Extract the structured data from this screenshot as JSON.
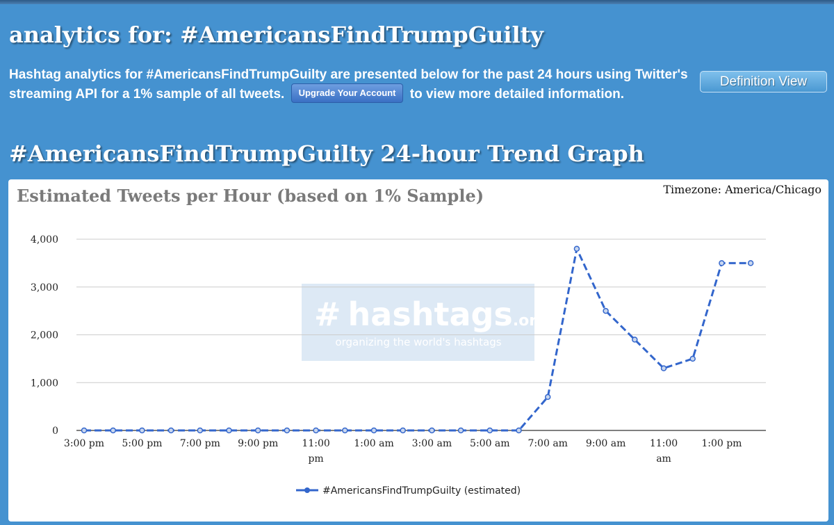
{
  "page": {
    "heading": "analytics for: #AmericansFindTrumpGuilty",
    "intro_before": "Hashtag analytics for #AmericansFindTrumpGuilty are presented below for the past 24 hours using Twitter's streaming API for a 1% sample of all tweets.",
    "upgrade_button": "Upgrade Your Account",
    "intro_after": "to view more detailed information.",
    "definition_button": "Definition View",
    "section_heading": "#AmericansFindTrumpGuilty 24-hour Trend Graph"
  },
  "watermark": {
    "hash": "#",
    "name": "hashtags",
    "tld": ".org",
    "tagline": "organizing the world's hashtags"
  },
  "chart_data": {
    "type": "line",
    "title": "Estimated Tweets per Hour (based on 1% Sample)",
    "timezone_label": "Timezone: America/Chicago",
    "x_tick_labels": [
      "3:00 pm",
      "5:00 pm",
      "7:00 pm",
      "9:00 pm",
      "11:00 pm",
      "1:00 am",
      "3:00 am",
      "5:00 am",
      "7:00 am",
      "9:00 am",
      "11:00 am",
      "1:00 pm"
    ],
    "x": [
      "3:00 pm",
      "4:00 pm",
      "5:00 pm",
      "6:00 pm",
      "7:00 pm",
      "8:00 pm",
      "9:00 pm",
      "10:00 pm",
      "11:00 pm",
      "12:00 am",
      "1:00 am",
      "2:00 am",
      "3:00 am",
      "4:00 am",
      "5:00 am",
      "6:00 am",
      "7:00 am",
      "8:00 am",
      "9:00 am",
      "10:00 am",
      "11:00 am",
      "12:00 pm",
      "1:00 pm",
      "2:00 pm"
    ],
    "y_ticks": [
      "0",
      "1,000",
      "2,000",
      "3,000",
      "4,000"
    ],
    "ylim": [
      0,
      4000
    ],
    "grid": true,
    "legend_position": "bottom",
    "series": [
      {
        "name": "#AmericansFindTrumpGuilty (estimated)",
        "color": "#3366cc",
        "line_style": "dashed",
        "values": [
          0,
          0,
          0,
          0,
          0,
          0,
          0,
          0,
          0,
          0,
          0,
          0,
          0,
          0,
          0,
          0,
          700,
          3800,
          2500,
          1900,
          1300,
          1500,
          3500,
          3500
        ]
      }
    ]
  },
  "colors": {
    "page_background": "#4592d0",
    "series_line": "#3366cc",
    "chart_title": "#7a7a7a"
  }
}
